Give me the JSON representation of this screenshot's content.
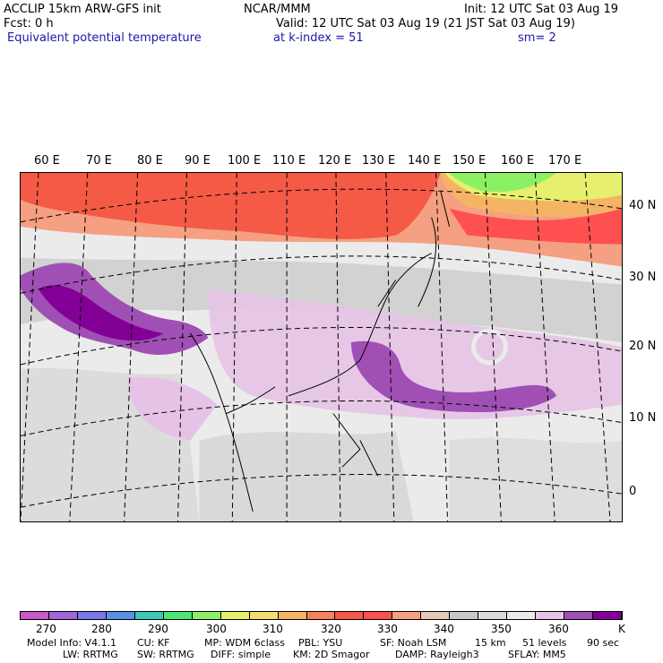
{
  "header": {
    "model_line": "ACCLIP 15km ARW-GFS init",
    "fcst_line": "Fcst:    0 h",
    "center": "NCAR/MMM",
    "init": "Init: 12 UTC Sat 03 Aug 19",
    "valid": "Valid: 12 UTC Sat 03 Aug 19 (21 JST Sat 03 Aug 19)",
    "field": "Equivalent potential temperature",
    "level": "at k-index =   51",
    "smooth": "sm= 2"
  },
  "map": {
    "longitude_labels": [
      "60 E",
      "70 E",
      "80 E",
      "90 E",
      "100 E",
      "110 E",
      "120 E",
      "130 E",
      "140 E",
      "150 E",
      "160 E",
      "170 E"
    ],
    "latitude_labels": [
      "40 N",
      "30 N",
      "20 N",
      "10 N",
      "0"
    ]
  },
  "colorbar": {
    "colors": [
      "#c85ac8",
      "#a266dc",
      "#7878e6",
      "#5a90e6",
      "#3cc8b4",
      "#4ce678",
      "#8cf064",
      "#e6f06e",
      "#f5dc6e",
      "#f5b464",
      "#f5825a",
      "#f55a46",
      "#ff5050",
      "#f5a082",
      "#e6c8b4",
      "#c8c8c8",
      "#dcdcdc",
      "#ebebeb",
      "#e6c3e6",
      "#a050b4",
      "#820096"
    ],
    "tick_labels": [
      "270",
      "280",
      "290",
      "300",
      "310",
      "320",
      "330",
      "340",
      "350",
      "360"
    ],
    "unit": "K"
  },
  "footer": {
    "line1": [
      "Model Info: V4.1.1",
      "CU: KF",
      "MP: WDM 6class",
      "PBL: YSU",
      "SF: Noah LSM",
      "15 km",
      "51 levels",
      "90 sec"
    ],
    "line2": [
      "LW: RRTMG",
      "SW: RRTMG",
      "DIFF: simple",
      "KM: 2D Smagor",
      "DAMP: Rayleigh3",
      "SFLAY: MM5"
    ]
  }
}
